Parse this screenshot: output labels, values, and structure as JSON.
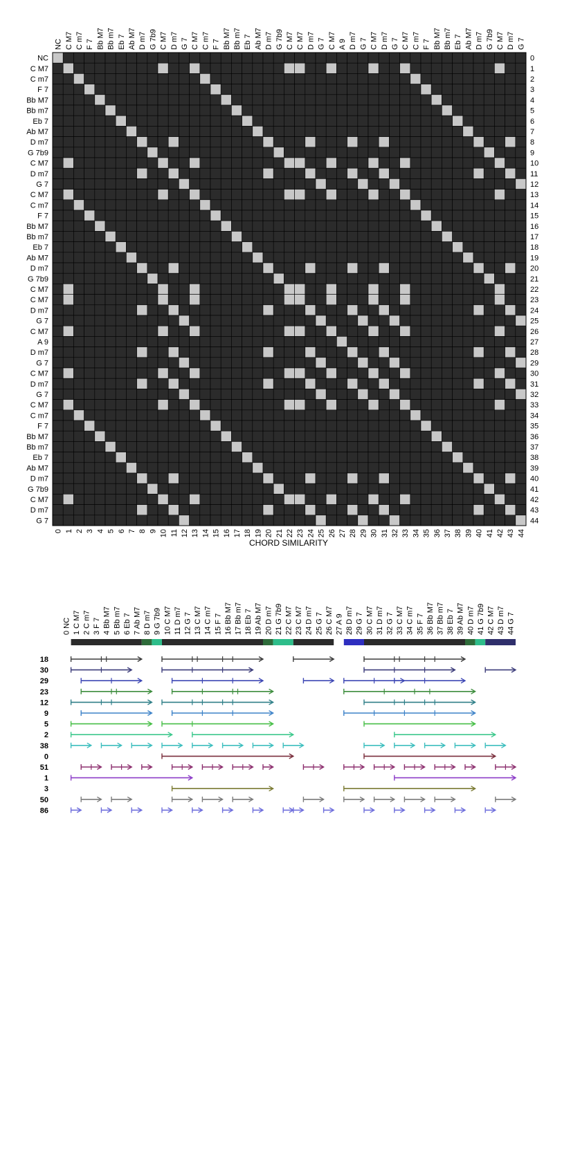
{
  "chart_data": [
    {
      "type": "heatmap",
      "title": "",
      "xlabel": "CHORD SIMILARITY",
      "ylabel": "",
      "chords": [
        "NC",
        "C M7",
        "C m7",
        "F 7",
        "Bb M7",
        "Bb m7",
        "Eb 7",
        "Ab M7",
        "D m7",
        "G 7b9",
        "C M7",
        "D m7",
        "G 7",
        "C M7",
        "C m7",
        "F 7",
        "Bb M7",
        "Bb m7",
        "Eb 7",
        "Ab M7",
        "D m7",
        "G 7b9",
        "C M7",
        "C M7",
        "D m7",
        "G 7",
        "C M7",
        "A 9",
        "D m7",
        "G 7",
        "C M7",
        "D m7",
        "G 7",
        "C M7",
        "C m7",
        "F 7",
        "Bb M7",
        "Bb m7",
        "Eb 7",
        "Ab M7",
        "D m7",
        "G 7b9",
        "C M7",
        "D m7",
        "G 7"
      ],
      "top_labels": [
        "NC",
        "C M7",
        "C m7",
        "F 7",
        "Bb M7",
        "Bb m7",
        "Eb 7",
        "Ab M7",
        "D m7",
        "G 7b9",
        "C M7",
        "D m7",
        "G 7",
        "C M7",
        "C m7",
        "F 7",
        "Bb M7",
        "Bb m7",
        "Eb 7",
        "Ab M7",
        "D m7",
        "G 7b9",
        "C M7",
        "C M7",
        "D m7",
        "G 7",
        "C M7",
        "A 9",
        "D m7",
        "G 7",
        "C M7",
        "D m7",
        "G 7",
        "C M7",
        "C m7",
        "F 7",
        "Bb M7",
        "Bb m7",
        "Eb 7",
        "Ab M7",
        "D m7",
        "G 7b9",
        "C M7",
        "D m7",
        "G 7"
      ],
      "index_labels": [
        "0",
        "1",
        "2",
        "3",
        "4",
        "5",
        "6",
        "7",
        "8",
        "9",
        "10",
        "11",
        "12",
        "13",
        "14",
        "15",
        "16",
        "17",
        "18",
        "19",
        "20",
        "21",
        "22",
        "23",
        "24",
        "25",
        "26",
        "27",
        "28",
        "29",
        "30",
        "31",
        "32",
        "33",
        "34",
        "35",
        "36",
        "37",
        "38",
        "39",
        "40",
        "41",
        "42",
        "43",
        "44"
      ],
      "colors": {
        "high": "#c8c8c8",
        "low": "#2b2b2b",
        "grid": "#000000"
      }
    },
    {
      "type": "timeline",
      "index_labels": [
        "0 NC",
        "1 C M7",
        "2 C m7",
        "3 F 7",
        "4 Bb M7",
        "5 Bb m7",
        "6 Eb 7",
        "7 Ab M7",
        "8 D m7",
        "9 G 7b9",
        "10 C M7",
        "11 D m7",
        "12 G 7",
        "13 C M7",
        "14 C m7",
        "15 F 7",
        "16 Bb M7",
        "17 Bb m7",
        "18 Eb 7",
        "19 Ab M7",
        "20 D m7",
        "21 G 7b9",
        "22 C M7",
        "23 C M7",
        "24 D m7",
        "25 G 7",
        "26 C M7",
        "27 A 9",
        "28 D m7",
        "29 G 7",
        "30 C M7",
        "31 D m7",
        "32 G 7",
        "33 C M7",
        "34 C m7",
        "35 F 7",
        "36 Bb M7",
        "37 Bb m7",
        "38 Eb 7",
        "39 Ab M7",
        "40 D m7",
        "41 G 7b9",
        "42 C M7",
        "43 D m7",
        "44 G 7"
      ],
      "section_bar": [
        {
          "start": 1,
          "end": 8,
          "color": "#2b2b2b"
        },
        {
          "start": 8,
          "end": 9,
          "color": "#2e6b3a"
        },
        {
          "start": 9,
          "end": 10,
          "color": "#2ebd8a"
        },
        {
          "start": 10,
          "end": 20,
          "color": "#2b2b2b"
        },
        {
          "start": 20,
          "end": 21,
          "color": "#2e6b3a"
        },
        {
          "start": 21,
          "end": 23,
          "color": "#2ebd8a"
        },
        {
          "start": 23,
          "end": 27,
          "color": "#2b2b2b"
        },
        {
          "start": 28,
          "end": 30,
          "color": "#2e2ebf"
        },
        {
          "start": 30,
          "end": 40,
          "color": "#2b2b2b"
        },
        {
          "start": 40,
          "end": 41,
          "color": "#2e6b3a"
        },
        {
          "start": 41,
          "end": 42,
          "color": "#2ebd8a"
        },
        {
          "start": 42,
          "end": 45,
          "color": "#2f2f6b"
        }
      ],
      "patterns": [
        {
          "label": "18",
          "color": "#3c3c3c",
          "occurrences": [
            [
              1,
              8
            ],
            [
              10,
              20
            ],
            [
              23,
              27
            ],
            [
              30,
              40
            ]
          ],
          "ticks": [
            [
              4,
              4.5
            ],
            [
              13,
              13.5,
              16,
              17
            ],
            [],
            [
              33,
              33.5,
              36,
              37
            ]
          ]
        },
        {
          "label": "30",
          "color": "#3c3c7a",
          "occurrences": [
            [
              1,
              7
            ],
            [
              10,
              19
            ],
            [
              30,
              39
            ],
            [
              42,
              45
            ]
          ],
          "ticks": [
            [
              4
            ],
            [
              13,
              16
            ],
            [
              33,
              36
            ],
            []
          ]
        },
        {
          "label": "29",
          "color": "#3c46b4",
          "occurrences": [
            [
              2,
              8
            ],
            [
              11,
              20
            ],
            [
              24,
              27
            ],
            [
              28,
              34
            ],
            [
              33,
              40
            ]
          ],
          "ticks": [
            [
              5
            ],
            [
              14,
              17
            ],
            [],
            [
              31
            ],
            [
              36
            ]
          ]
        },
        {
          "label": "23",
          "color": "#3c8c3c",
          "occurrences": [
            [
              2,
              9
            ],
            [
              11,
              21
            ],
            [
              28,
              41
            ]
          ],
          "ticks": [
            [
              5,
              5.5
            ],
            [
              14,
              17,
              17.5
            ],
            [
              32,
              35,
              36.5
            ]
          ]
        },
        {
          "label": "12",
          "color": "#2f7f88",
          "occurrences": [
            [
              1,
              9
            ],
            [
              10,
              21
            ],
            [
              30,
              41
            ]
          ],
          "ticks": [
            [
              4,
              5
            ],
            [
              13,
              14,
              16,
              17
            ],
            [
              33,
              34,
              36,
              37
            ]
          ]
        },
        {
          "label": "9",
          "color": "#3c82c8",
          "occurrences": [
            [
              2,
              9
            ],
            [
              11,
              21
            ],
            [
              28,
              41
            ]
          ],
          "ticks": [
            [],
            [
              14,
              17
            ],
            [
              31,
              34,
              37
            ]
          ]
        },
        {
          "label": "5",
          "color": "#46be46",
          "occurrences": [
            [
              1,
              9
            ],
            [
              10,
              21
            ],
            [
              30,
              41
            ]
          ],
          "ticks": [
            [],
            [
              13
            ],
            []
          ]
        },
        {
          "label": "2",
          "color": "#3cc88c",
          "occurrences": [
            [
              1,
              11
            ],
            [
              13,
              23
            ],
            [
              33,
              43
            ]
          ],
          "ticks": [
            [],
            [],
            []
          ]
        },
        {
          "label": "38",
          "color": "#3cbebe",
          "occurrences": [
            [
              1,
              3
            ],
            [
              4,
              6
            ],
            [
              7,
              9
            ],
            [
              10,
              12
            ],
            [
              13,
              15
            ],
            [
              16,
              18
            ],
            [
              19,
              21
            ],
            [
              22,
              24
            ],
            [
              30,
              32
            ],
            [
              33,
              35
            ],
            [
              36,
              38
            ],
            [
              39,
              41
            ],
            [
              42,
              44
            ]
          ],
          "ticks": []
        },
        {
          "label": "0",
          "color": "#7a2e3c",
          "occurrences": [
            [
              10,
              23
            ],
            [
              30,
              43
            ]
          ],
          "ticks": [
            [],
            []
          ]
        },
        {
          "label": "51",
          "color": "#8c2e6e",
          "occurrences": [
            [
              2,
              4
            ],
            [
              5,
              7
            ],
            [
              8,
              9
            ],
            [
              11,
              13
            ],
            [
              14,
              16
            ],
            [
              17,
              19
            ],
            [
              20,
              21
            ],
            [
              24,
              26
            ],
            [
              28,
              30
            ],
            [
              31,
              33
            ],
            [
              34,
              36
            ],
            [
              37,
              39
            ],
            [
              40,
              41
            ],
            [
              43,
              45
            ]
          ],
          "ticks": [
            [
              3
            ],
            [
              6
            ],
            [],
            [
              12
            ],
            [
              15
            ],
            [
              18
            ],
            [],
            [
              25
            ],
            [
              29
            ],
            [
              32
            ],
            [
              35
            ],
            [
              38
            ],
            [],
            [
              44
            ]
          ]
        },
        {
          "label": "1",
          "color": "#8c3cc8",
          "occurrences": [
            [
              1,
              13
            ],
            [
              33,
              45
            ]
          ],
          "ticks": [
            [],
            []
          ]
        },
        {
          "label": "3",
          "color": "#7a7a32",
          "occurrences": [
            [
              11,
              21
            ],
            [
              28,
              41
            ]
          ],
          "ticks": [
            [],
            []
          ]
        },
        {
          "label": "50",
          "color": "#7a7a7a",
          "occurrences": [
            [
              2,
              4
            ],
            [
              5,
              7
            ],
            [
              11,
              13
            ],
            [
              14,
              16
            ],
            [
              17,
              19
            ],
            [
              24,
              26
            ],
            [
              28,
              30
            ],
            [
              31,
              33
            ],
            [
              34,
              36
            ],
            [
              37,
              39
            ],
            [
              43,
              45
            ]
          ],
          "ticks": []
        },
        {
          "label": "86",
          "color": "#6e6edc",
          "occurrences": [
            [
              1,
              2
            ],
            [
              4,
              5
            ],
            [
              7,
              8
            ],
            [
              10,
              11
            ],
            [
              13,
              14
            ],
            [
              16,
              17
            ],
            [
              19,
              20
            ],
            [
              22,
              23
            ],
            [
              23,
              24
            ],
            [
              26,
              27
            ],
            [
              30,
              31
            ],
            [
              33,
              34
            ],
            [
              36,
              37
            ],
            [
              39,
              40
            ],
            [
              42,
              43
            ]
          ],
          "ticks": []
        }
      ]
    }
  ]
}
